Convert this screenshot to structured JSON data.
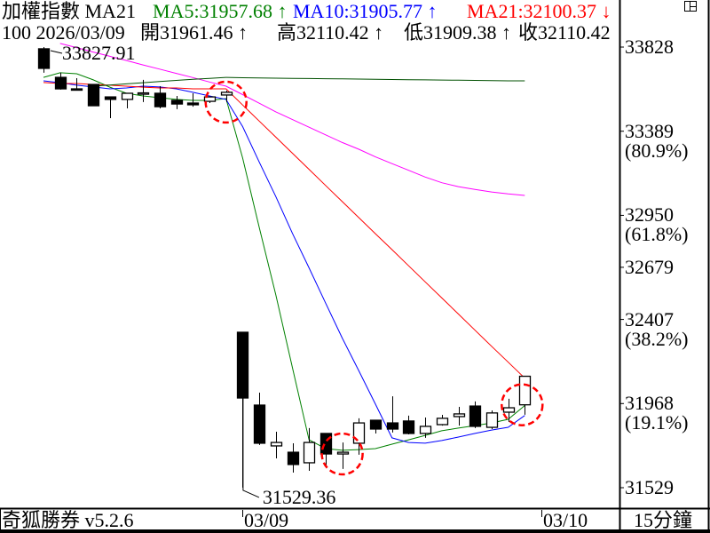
{
  "header": {
    "symbol": "加權指數 MA21",
    "ma5_text": "MA5:31957.68 ↑",
    "ma10_text": "MA10:31905.77 ↑",
    "ma21_text": "MA21:32100.37 ↓",
    "count_date": "100 2026/03/09",
    "open_text": "開31961.46 ↑",
    "high_text": "高32110.42 ↑",
    "low_text": "低31909.38 ↑",
    "close_text": "收32110.42"
  },
  "footer": {
    "brand": "奇狐勝券 v5.2.6",
    "interval": "15分鐘"
  },
  "colors": {
    "ma5": "#008000",
    "ma10": "#0000ff",
    "ma21": "#ff0000",
    "ma_long1": "#ff00ff",
    "ma_long2": "#005000",
    "highlight": "#ff0000"
  },
  "chart_data": {
    "type": "candlestick",
    "ylim": [
      31529,
      33828
    ],
    "y_ticks": [
      {
        "value": 33828,
        "label": "33828",
        "pct": ""
      },
      {
        "value": 33389,
        "label": "33389",
        "pct": "(80.9%)"
      },
      {
        "value": 32950,
        "label": "32950",
        "pct": "(61.8%)"
      },
      {
        "value": 32679,
        "label": "32679",
        "pct": ""
      },
      {
        "value": 32407,
        "label": "32407",
        "pct": "(38.2%)"
      },
      {
        "value": 31968,
        "label": "31968",
        "pct": "(19.1%)"
      },
      {
        "value": 31529,
        "label": "31529",
        "pct": ""
      }
    ],
    "x_ticks": [
      {
        "index": 12,
        "label": "03/09"
      },
      {
        "index": 30,
        "label": "03/10"
      }
    ],
    "annotations": {
      "high_label": "33827.91",
      "high_index": 0,
      "low_label": "31529.36",
      "low_index": 12
    },
    "highlight_indices": [
      11,
      18,
      29
    ],
    "candles": [
      [
        33819,
        33827.91,
        33694,
        33717
      ],
      [
        33670,
        33694,
        33606,
        33610
      ],
      [
        33610,
        33666,
        33601,
        33606
      ],
      [
        33633,
        33633,
        33522,
        33522
      ],
      [
        33568,
        33568,
        33457,
        33555
      ],
      [
        33555,
        33587,
        33508,
        33587
      ],
      [
        33587,
        33657,
        33541,
        33589
      ],
      [
        33587,
        33624,
        33508,
        33517
      ],
      [
        33550,
        33573,
        33504,
        33531
      ],
      [
        33536,
        33587,
        33517,
        33527
      ],
      [
        33545,
        33568,
        33536,
        33568
      ],
      [
        33578,
        33601,
        33541,
        33592
      ],
      [
        32340,
        32340,
        31529.36,
        31997
      ],
      [
        31960,
        32025,
        31752,
        31761
      ],
      [
        31747,
        31821,
        31682,
        31765
      ],
      [
        31714,
        31761,
        31608,
        31650
      ],
      [
        31659,
        31840,
        31617,
        31765
      ],
      [
        31812,
        31812,
        31640,
        31705
      ],
      [
        31705,
        31765,
        31627,
        31714
      ],
      [
        31761,
        31891,
        31701,
        31867
      ],
      [
        31881,
        31881,
        31812,
        31835
      ],
      [
        31867,
        32006,
        31817,
        31835
      ],
      [
        31877,
        31905,
        31807,
        31812
      ],
      [
        31812,
        31895,
        31789,
        31849
      ],
      [
        31858,
        31909,
        31853,
        31891
      ],
      [
        31900,
        31951,
        31853,
        31914
      ],
      [
        31955,
        31979,
        31840,
        31849
      ],
      [
        31844,
        31932,
        31835,
        31919
      ],
      [
        31923,
        31993,
        31872,
        31946
      ],
      [
        31961.46,
        32110.42,
        31909.38,
        32110.42
      ]
    ],
    "series": [
      {
        "name": "MA5",
        "color": "#008000",
        "values": [
          33670,
          33694,
          33689,
          33657,
          33619,
          33587,
          33573,
          33564,
          33555,
          33550,
          33550,
          33559,
          33249,
          32887,
          32535,
          32155,
          31779,
          31733,
          31724,
          31728,
          31733,
          31756,
          31779,
          31802,
          31826,
          31840,
          31853,
          31867,
          31886,
          31957.68
        ]
      },
      {
        "name": "MA10",
        "color": "#0000ff",
        "values": [
          33652,
          33642,
          33629,
          33620,
          33610,
          33615,
          33624,
          33620,
          33610,
          33592,
          33573,
          33555,
          33413,
          33228,
          33048,
          32856,
          32676,
          32492,
          32310,
          32139,
          31965,
          31789,
          31765,
          31761,
          31775,
          31793,
          31812,
          31830,
          31844,
          31905.77
        ]
      },
      {
        "name": "MA21",
        "color": "#ff0000",
        "values": [
          33643,
          33638,
          33638,
          33633,
          33629,
          33624,
          33619,
          33615,
          33615,
          33610,
          33610,
          33610,
          33526,
          33442,
          33358,
          33274,
          33190,
          33106,
          33022,
          32938,
          32854,
          32771,
          32687,
          32603,
          32519,
          32435,
          32351,
          32267,
          32184,
          32100.37
        ]
      },
      {
        "color": "#ff00ff",
        "values": [
          null,
          33847,
          33825,
          33802,
          33780,
          33758,
          33735,
          33713,
          33691,
          33669,
          33646,
          33624,
          33580,
          33535,
          33490,
          33450,
          33410,
          33370,
          33330,
          33295,
          33255,
          33220,
          33185,
          33150,
          33120,
          33100,
          33085,
          33072,
          33062,
          33054
        ]
      },
      {
        "color": "#005000",
        "values": [
          null,
          null,
          null,
          33624,
          33630,
          33636,
          33642,
          33648,
          33654,
          33660,
          33665,
          33670,
          33668,
          33667,
          33666,
          33665,
          33664,
          33663,
          33662,
          33661,
          33660,
          33659,
          33658,
          33657,
          33656,
          33655,
          33654,
          33653,
          33652,
          33652
        ]
      }
    ]
  }
}
